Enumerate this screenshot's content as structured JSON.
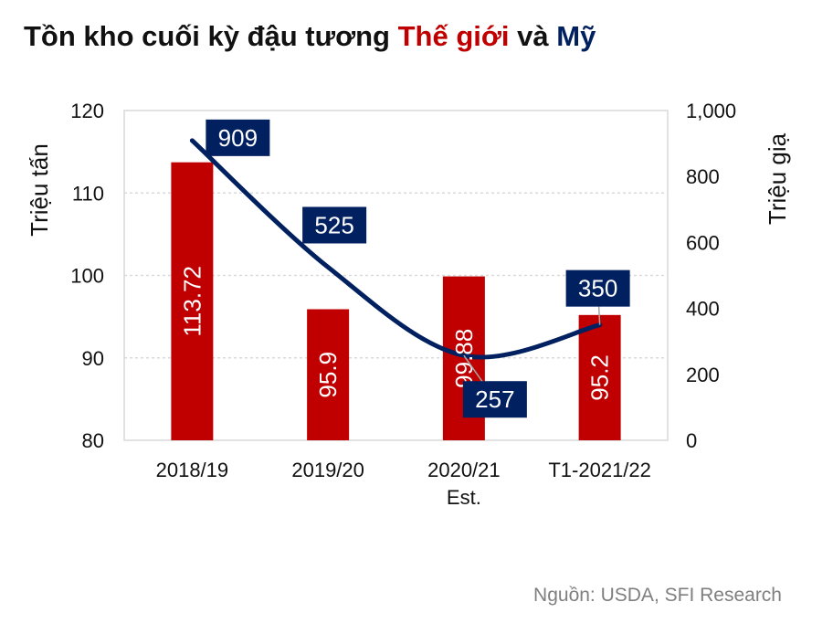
{
  "title": {
    "part1": "Tồn kho cuối kỳ đậu tương ",
    "part2": "Thế giới",
    "part3": " và ",
    "part4": "Mỹ"
  },
  "colors": {
    "world": "#c00000",
    "us": "#002060",
    "grid": "#d9d9d9",
    "plot_border": "#d9d9d9",
    "source": "#7f7f7f"
  },
  "source": "Nguồn: USDA, SFI Research",
  "chart_data": {
    "type": "bar",
    "categories": [
      "2018/19",
      "2019/20",
      "2020/21",
      "T1-2021/22"
    ],
    "category_sublabels": [
      "",
      "",
      "Est.",
      ""
    ],
    "ylabel": "Triệu tấn",
    "y2label": "Triệu giạ",
    "ylim": [
      80,
      120
    ],
    "y_ticks": [
      "80",
      "90",
      "100",
      "110",
      "120"
    ],
    "y2lim": [
      0,
      1000
    ],
    "y2_ticks": [
      "0",
      "200",
      "400",
      "600",
      "800",
      "1,000"
    ],
    "grid": true,
    "series": [
      {
        "type": "bar",
        "axis": "left",
        "values": [
          113.72,
          95.9,
          99.88,
          95.2
        ],
        "labels": [
          "113.72",
          "95.9",
          "99.88",
          "95.2"
        ]
      },
      {
        "type": "line",
        "axis": "right",
        "values": [
          909,
          525,
          257,
          350
        ],
        "labels": [
          "909",
          "525",
          "257",
          "350"
        ]
      }
    ]
  }
}
